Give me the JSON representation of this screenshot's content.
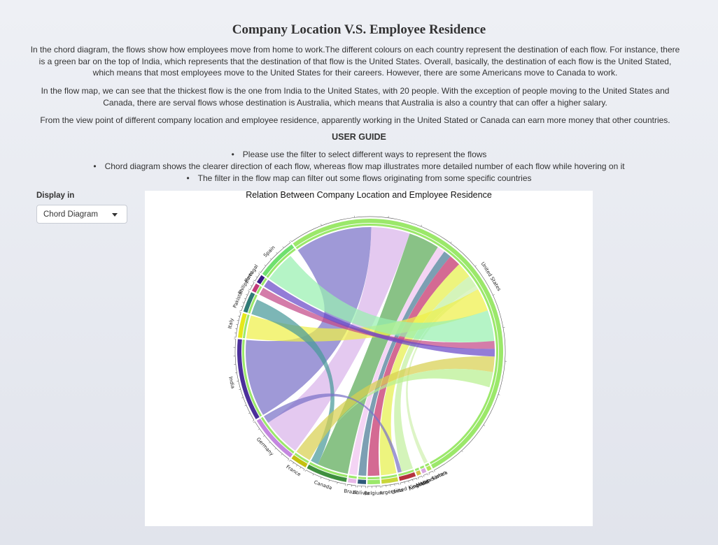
{
  "title": "Company Location V.S. Employee Residence",
  "paragraphs": [
    "In the chord diagram, the flows show how employees move from home to work.The different colours on each country represent the destination of each flow. For instance, there is a green bar on the top of India, which represents that the destination of that flow is the United States. Overall, basically, the destination of each flow is the United Stated, which means that most employees move to the United States for their careers. However, there are some Americans move to Canada to work.",
    "In the flow map, we can see that the thickest flow is the one from India to the United States, with 20 people. With the exception of people moving to the United States and Canada, there are serval flows whose destination is Australia, which means that Australia is also a country that can offer a higher salary.",
    "From the view point of different company location and employee residence, apparently working in the United Stated or Canada can earn more money that other countries."
  ],
  "user_guide": {
    "heading": "USER GUIDE",
    "items": [
      "Please use the filter to select different ways to represent the flows",
      "Chord diagram shows the clearer direction of each flow, whereas flow map illustrates more detailed number of each flow while hovering on it",
      "The filter in the flow map can filter out some flows originating from some specific countries"
    ]
  },
  "display": {
    "label": "Display in",
    "selected": "Chord Diagram"
  },
  "chart_title": "Relation Between Company Location and Employee Residence",
  "diagram": {
    "type": "chord",
    "sectors": [
      {
        "name": "United States",
        "value": 104,
        "color": "#9be86a"
      },
      {
        "name": "Uzbekistan",
        "value": 1,
        "color": "#b0e65a"
      },
      {
        "name": "American Samoa",
        "value": 1,
        "color": "#d9a6e0"
      },
      {
        "name": "Malta",
        "value": 1,
        "color": "#d6c04a"
      },
      {
        "name": "United Kingdom",
        "value": 4,
        "color": "#b5323f"
      },
      {
        "name": "Argentina",
        "value": 4,
        "color": "#c9d63a"
      },
      {
        "name": "Belgium",
        "value": 3,
        "color": "#9be86a"
      },
      {
        "name": "Bolivia",
        "value": 2,
        "color": "#2e5a7a"
      },
      {
        "name": "Brazil",
        "value": 2,
        "color": "#e8b8e8"
      },
      {
        "name": "Canada",
        "value": 10,
        "color": "#3f8f3f"
      },
      {
        "name": "France",
        "value": 4,
        "color": "#c4c010"
      },
      {
        "name": "Germany",
        "value": 12,
        "color": "#c486e0"
      },
      {
        "name": "India",
        "value": 20,
        "color": "#4b2f9a"
      },
      {
        "name": "Italy",
        "value": 6,
        "color": "#e6e81a"
      },
      {
        "name": "Pakistan",
        "value": 5,
        "color": "#2f7a76"
      },
      {
        "name": "Philippines",
        "value": 2,
        "color": "#c23a7a"
      },
      {
        "name": "Portugal",
        "value": 2,
        "color": "#3a1a86"
      },
      {
        "name": "Spain",
        "value": 10,
        "color": "#6fe06f"
      }
    ],
    "flows": [
      {
        "from": "India",
        "to": "United States",
        "value": 20,
        "color": "#7a72c8"
      },
      {
        "from": "Germany",
        "to": "United States",
        "value": 10,
        "color": "#d9b4ea"
      },
      {
        "from": "Canada",
        "to": "United States",
        "value": 8,
        "color": "#5caa58"
      },
      {
        "from": "Brazil",
        "to": "United States",
        "value": 2,
        "color": "#f0c4f0"
      },
      {
        "from": "Bolivia",
        "to": "United States",
        "value": 2,
        "color": "#4a7a96"
      },
      {
        "from": "Belgium",
        "to": "United States",
        "value": 3,
        "color": "#c4306a"
      },
      {
        "from": "Argentina",
        "to": "United States",
        "value": 4,
        "color": "#e6f04c"
      },
      {
        "from": "United Kingdom",
        "to": "United States",
        "value": 3,
        "color": "#c4f0a0"
      },
      {
        "from": "Uzbekistan",
        "to": "United States",
        "value": 1,
        "color": "#d0f0b0"
      },
      {
        "from": "Italy",
        "to": "United States",
        "value": 6,
        "color": "#eef04a"
      },
      {
        "from": "Spain",
        "to": "United States",
        "value": 8,
        "color": "#98f0b0"
      },
      {
        "from": "Pakistan",
        "to": "Canada",
        "value": 4,
        "color": "#4a9a9a"
      },
      {
        "from": "Philippines",
        "to": "United States",
        "value": 2,
        "color": "#c44a88"
      },
      {
        "from": "Portugal",
        "to": "United States",
        "value": 2,
        "color": "#6a4ac8"
      },
      {
        "from": "France",
        "to": "United States",
        "value": 4,
        "color": "#d8d050"
      },
      {
        "from": "United States",
        "to": "Canada",
        "value": 4,
        "color": "#b8f090"
      },
      {
        "from": "Germany",
        "to": "United Kingdom",
        "value": 2,
        "color": "#7a72c8"
      },
      {
        "from": "India",
        "to": "Argentina",
        "value": 2,
        "color": "#6a9aa8"
      }
    ]
  }
}
